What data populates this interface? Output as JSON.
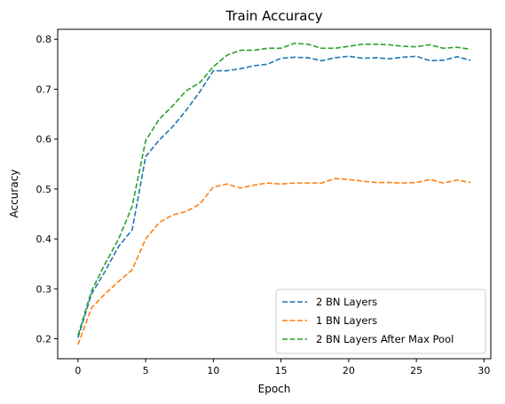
{
  "chart_data": {
    "type": "line",
    "title": "Train Accuracy",
    "xlabel": "Epoch",
    "ylabel": "Accuracy",
    "xlim": [
      -1.5,
      30.5
    ],
    "ylim": [
      0.16,
      0.82
    ],
    "xticks": [
      0,
      5,
      10,
      15,
      20,
      25,
      30
    ],
    "yticks": [
      0.2,
      0.3,
      0.4,
      0.5,
      0.6,
      0.7,
      0.8
    ],
    "x": [
      0,
      1,
      2,
      3,
      4,
      5,
      6,
      7,
      8,
      9,
      10,
      11,
      12,
      13,
      14,
      15,
      16,
      17,
      18,
      19,
      20,
      21,
      22,
      23,
      24,
      25,
      26,
      27,
      28,
      29
    ],
    "grid": false,
    "legend_position": "lower right",
    "line_style": "dashed",
    "series": [
      {
        "name": "2 BN Layers",
        "color": "#1f77b4",
        "values": [
          0.202,
          0.29,
          0.335,
          0.385,
          0.418,
          0.565,
          0.598,
          0.625,
          0.658,
          0.695,
          0.737,
          0.737,
          0.741,
          0.747,
          0.75,
          0.762,
          0.764,
          0.763,
          0.757,
          0.763,
          0.766,
          0.762,
          0.763,
          0.761,
          0.764,
          0.766,
          0.757,
          0.758,
          0.765,
          0.758
        ]
      },
      {
        "name": "1 BN Layers",
        "color": "#ff7f0e",
        "values": [
          0.188,
          0.262,
          0.29,
          0.315,
          0.338,
          0.4,
          0.433,
          0.448,
          0.455,
          0.47,
          0.504,
          0.51,
          0.502,
          0.508,
          0.512,
          0.51,
          0.512,
          0.512,
          0.512,
          0.521,
          0.519,
          0.516,
          0.513,
          0.513,
          0.512,
          0.513,
          0.519,
          0.512,
          0.518,
          0.513
        ]
      },
      {
        "name": "2 BN Layers After Max Pool",
        "color": "#2ca02c",
        "values": [
          0.207,
          0.296,
          0.35,
          0.4,
          0.465,
          0.597,
          0.64,
          0.667,
          0.697,
          0.713,
          0.745,
          0.768,
          0.778,
          0.778,
          0.782,
          0.782,
          0.792,
          0.79,
          0.782,
          0.782,
          0.786,
          0.79,
          0.79,
          0.789,
          0.786,
          0.785,
          0.789,
          0.782,
          0.784,
          0.78
        ]
      }
    ]
  }
}
